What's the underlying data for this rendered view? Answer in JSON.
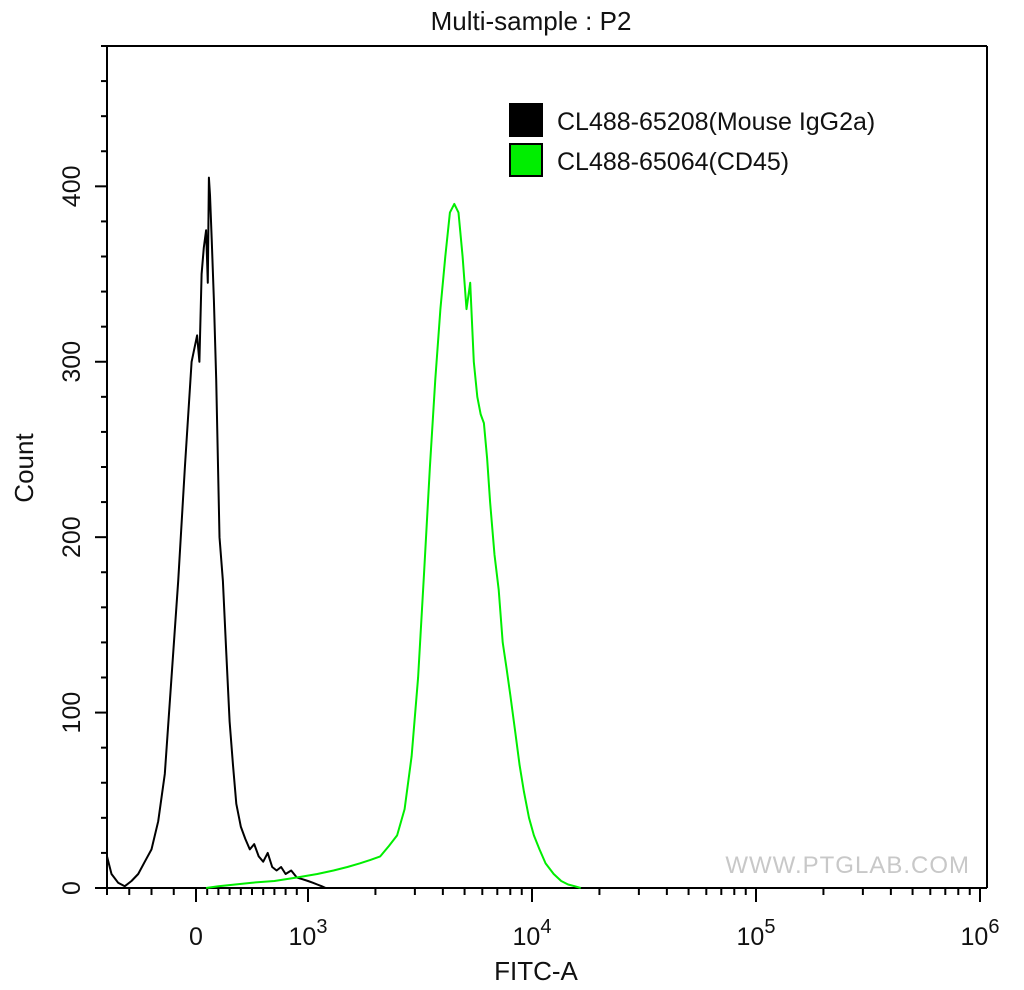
{
  "chart_data": {
    "type": "line",
    "title": "Multi-sample : P2",
    "xlabel": "FITC-A",
    "ylabel": "Count",
    "x_scale": "biexponential",
    "xlim": [
      -400,
      1000000
    ],
    "ylim": [
      0,
      480
    ],
    "grid": false,
    "legend_position": "top-right",
    "x_ticks": [
      {
        "value": 0,
        "base": "0",
        "exp": ""
      },
      {
        "value": 1000,
        "base": "10",
        "exp": "3"
      },
      {
        "value": 10000,
        "base": "10",
        "exp": "4"
      },
      {
        "value": 100000,
        "base": "10",
        "exp": "5"
      },
      {
        "value": 1000000,
        "base": "10",
        "exp": "6"
      }
    ],
    "y_ticks": [
      {
        "value": 0,
        "label": "0"
      },
      {
        "value": 100,
        "label": "100"
      },
      {
        "value": 200,
        "label": "200"
      },
      {
        "value": 300,
        "label": "300"
      },
      {
        "value": 400,
        "label": "400"
      }
    ],
    "series": [
      {
        "name": "CL488-65208(Mouse IgG2a)",
        "color": "#000000",
        "x": [
          -400,
          -380,
          -350,
          -320,
          -290,
          -260,
          -230,
          -200,
          -170,
          -140,
          -110,
          -80,
          -50,
          -20,
          10,
          30,
          50,
          70,
          90,
          105,
          115,
          125,
          140,
          160,
          180,
          210,
          240,
          270,
          300,
          330,
          360,
          400,
          440,
          480,
          520,
          560,
          600,
          640,
          680,
          720,
          760,
          800,
          850,
          900,
          950,
          1000,
          1050,
          1100,
          1150,
          1200
        ],
        "y": [
          18,
          8,
          3,
          1,
          4,
          8,
          15,
          22,
          38,
          65,
          120,
          175,
          240,
          300,
          315,
          300,
          350,
          365,
          375,
          345,
          405,
          395,
          370,
          335,
          290,
          200,
          175,
          135,
          95,
          70,
          48,
          35,
          28,
          22,
          25,
          18,
          15,
          20,
          12,
          10,
          12,
          8,
          10,
          6,
          5,
          4,
          3,
          2,
          1,
          0
        ]
      },
      {
        "name": "CL488-65064(CD45)",
        "color": "#00ee00",
        "x": [
          90,
          200,
          350,
          500,
          700,
          900,
          1100,
          1300,
          1500,
          1700,
          1900,
          2100,
          2300,
          2500,
          2700,
          2900,
          3100,
          3300,
          3500,
          3700,
          3900,
          4100,
          4300,
          4500,
          4700,
          4900,
          5100,
          5300,
          5500,
          5700,
          5900,
          6100,
          6300,
          6500,
          6800,
          7100,
          7400,
          7700,
          8000,
          8400,
          8800,
          9200,
          9700,
          10200,
          10800,
          11500,
          12500,
          13500,
          14500,
          15500,
          16500
        ],
        "y": [
          0,
          1,
          2,
          3,
          4,
          6,
          8,
          10,
          12,
          14,
          16,
          18,
          24,
          30,
          45,
          75,
          120,
          180,
          240,
          290,
          330,
          360,
          385,
          390,
          385,
          360,
          330,
          345,
          300,
          280,
          270,
          265,
          245,
          220,
          190,
          170,
          140,
          125,
          110,
          90,
          70,
          55,
          40,
          30,
          22,
          14,
          8,
          4,
          2,
          1,
          0
        ]
      }
    ]
  },
  "watermark": "WWW.PTGLAB.COM"
}
